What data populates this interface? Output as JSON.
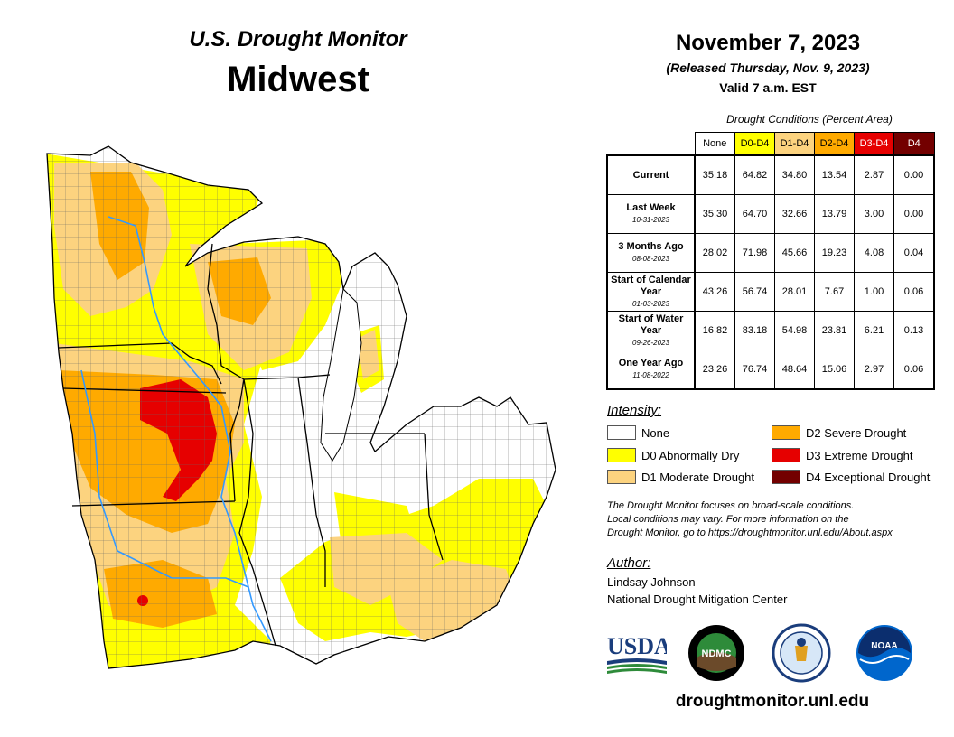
{
  "header": {
    "supertitle": "U.S. Drought Monitor",
    "region": "Midwest",
    "date": "November 7, 2023",
    "released": "(Released Thursday, Nov. 9, 2023)",
    "valid": "Valid 7 a.m. EST"
  },
  "table": {
    "caption": "Drought Conditions (Percent Area)",
    "columns": [
      "None",
      "D0-D4",
      "D1-D4",
      "D2-D4",
      "D3-D4",
      "D4"
    ],
    "column_colors": [
      "#ffffff",
      "#ffff00",
      "#fcd37f",
      "#ffaa00",
      "#e60000",
      "#730000"
    ],
    "rows": [
      {
        "label": "Current",
        "sublabel": "",
        "values": [
          "35.18",
          "64.82",
          "34.80",
          "13.54",
          "2.87",
          "0.00"
        ]
      },
      {
        "label": "Last Week",
        "sublabel": "10-31-2023",
        "values": [
          "35.30",
          "64.70",
          "32.66",
          "13.79",
          "3.00",
          "0.00"
        ]
      },
      {
        "label": "3 Months Ago",
        "sublabel": "08-08-2023",
        "values": [
          "28.02",
          "71.98",
          "45.66",
          "19.23",
          "4.08",
          "0.04"
        ]
      },
      {
        "label": "Start of Calendar Year",
        "sublabel": "01-03-2023",
        "values": [
          "43.26",
          "56.74",
          "28.01",
          "7.67",
          "1.00",
          "0.06"
        ]
      },
      {
        "label": "Start of Water Year",
        "sublabel": "09-26-2023",
        "values": [
          "16.82",
          "83.18",
          "54.98",
          "23.81",
          "6.21",
          "0.13"
        ]
      },
      {
        "label": "One Year Ago",
        "sublabel": "11-08-2022",
        "values": [
          "23.26",
          "76.74",
          "48.64",
          "15.06",
          "2.97",
          "0.06"
        ]
      }
    ]
  },
  "legend": {
    "title": "Intensity:",
    "items": [
      {
        "label": "None",
        "color": "#ffffff"
      },
      {
        "label": "D0 Abnormally Dry",
        "color": "#ffff00"
      },
      {
        "label": "D1 Moderate Drought",
        "color": "#fcd37f"
      },
      {
        "label": "D2 Severe Drought",
        "color": "#ffaa00"
      },
      {
        "label": "D3 Extreme Drought",
        "color": "#e60000"
      },
      {
        "label": "D4 Exceptional Drought",
        "color": "#730000"
      }
    ]
  },
  "note": {
    "line1": "The Drought Monitor focuses on broad-scale conditions.",
    "line2": "Local conditions may vary. For more information on the",
    "line3": "Drought Monitor, go to https://droughtmonitor.unl.edu/About.aspx"
  },
  "author": {
    "title": "Author:",
    "name": "Lindsay Johnson",
    "org": "National Drought Mitigation Center"
  },
  "logos": {
    "usda": "USDA",
    "ndmc": "NDMC",
    "noaa": "NOAA"
  },
  "footer": {
    "url": "droughtmonitor.unl.edu"
  }
}
